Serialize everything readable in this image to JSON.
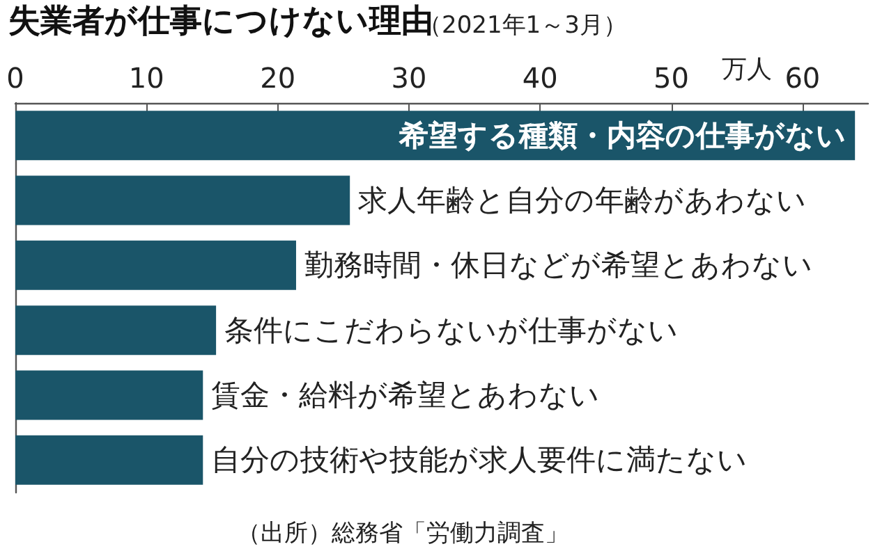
{
  "chart_data": {
    "type": "bar",
    "orientation": "horizontal",
    "title": "失業者が仕事につけない理由",
    "subtitle": "（2021年1～3月）",
    "xlabel": "万人",
    "categories": [
      "希望する種類・内容の仕事がない",
      "求人年齢と自分の年齢があわない",
      "勤務時間・休日などが希望とあわない",
      "条件にこだわらないが仕事がない",
      "賃金・給料が希望とあわない",
      "自分の技術や技能が求人要件に満たない"
    ],
    "values": [
      64,
      25.5,
      21.4,
      15.3,
      14.3,
      14.3
    ],
    "color": "#1a5569",
    "xlim": [
      0,
      65
    ],
    "xticks": [
      0,
      10,
      20,
      30,
      40,
      50,
      60
    ],
    "grid": false,
    "tick_labels": "x",
    "annotations": [
      "（出所）総務省「労働力調査」"
    ]
  }
}
